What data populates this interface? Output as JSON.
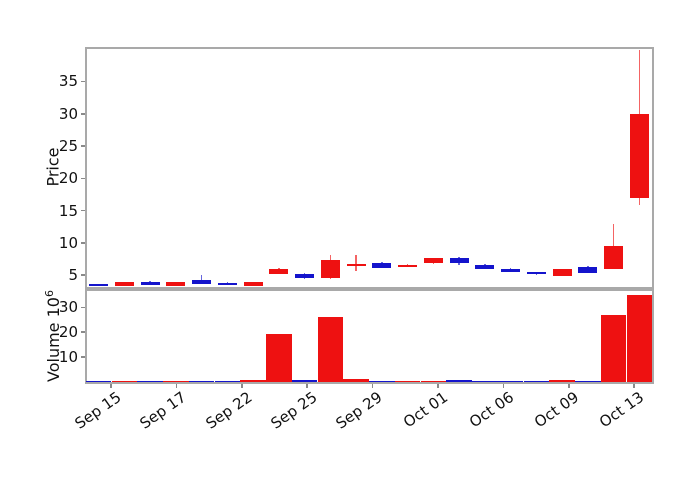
{
  "figure": {
    "background": "#ffffff",
    "title": ""
  },
  "colors": {
    "red": "#ee1111",
    "blue": "#1414cc",
    "spine": "#a9a9a9",
    "tick": "#8a8a8a",
    "text": "#111111"
  },
  "chart_data": {
    "type": "candlestick_with_volume",
    "title": "",
    "price": {
      "ylabel": "Price",
      "yticks": [
        5,
        10,
        15,
        20,
        25,
        30,
        35
      ],
      "ylim": [
        3.0,
        40.3
      ],
      "grid": false
    },
    "volume": {
      "ylabel": "Volume 10⁶",
      "ylabel_base": "Volume  10",
      "ylabel_exp": "6",
      "yticks": [
        10,
        20,
        30
      ],
      "ylim": [
        0,
        37.5
      ],
      "unit": "millions",
      "grid": false
    },
    "x_tick_labels": [
      "Sep 15",
      "Sep 17",
      "Sep 22",
      "Sep 25",
      "Sep 29",
      "Oct 01",
      "Oct 06",
      "Oct 09",
      "Oct 13"
    ],
    "legend": null,
    "candles": [
      {
        "open": 3.65,
        "high": 3.7,
        "low": 3.45,
        "close": 3.5,
        "volume_m": 0.15,
        "color": "blue"
      },
      {
        "open": 3.35,
        "high": 4.0,
        "low": 3.3,
        "close": 3.95,
        "volume_m": 0.2,
        "color": "red"
      },
      {
        "open": 4.0,
        "high": 4.05,
        "low": 3.45,
        "close": 3.5,
        "volume_m": 0.15,
        "color": "blue"
      },
      {
        "open": 3.35,
        "high": 3.95,
        "low": 3.3,
        "close": 3.9,
        "volume_m": 0.15,
        "color": "red"
      },
      {
        "open": 4.2,
        "high": 5.0,
        "low": 3.65,
        "close": 3.7,
        "volume_m": 0.25,
        "color": "blue"
      },
      {
        "open": 3.85,
        "high": 3.9,
        "low": 3.5,
        "close": 3.55,
        "volume_m": 0.15,
        "color": "blue"
      },
      {
        "open": 3.4,
        "high": 4.0,
        "low": 3.35,
        "close": 3.95,
        "volume_m": 0.7,
        "color": "red"
      },
      {
        "open": 5.25,
        "high": 6.1,
        "low": 5.2,
        "close": 6.0,
        "volume_m": 19.3,
        "color": "red"
      },
      {
        "open": 5.25,
        "high": 5.3,
        "low": 4.45,
        "close": 4.5,
        "volume_m": 0.6,
        "color": "blue"
      },
      {
        "open": 4.5,
        "high": 8.2,
        "low": 4.4,
        "close": 7.3,
        "volume_m": 26.3,
        "color": "red"
      },
      {
        "open": 6.65,
        "high": 8.1,
        "low": 5.6,
        "close": 6.75,
        "volume_m": 1.0,
        "color": "red"
      },
      {
        "open": 6.95,
        "high": 7.1,
        "low": 6.05,
        "close": 6.15,
        "volume_m": 0.3,
        "color": "blue"
      },
      {
        "open": 6.45,
        "high": 6.8,
        "low": 6.3,
        "close": 6.6,
        "volume_m": 0.25,
        "color": "red"
      },
      {
        "open": 6.85,
        "high": 7.65,
        "low": 6.8,
        "close": 7.6,
        "volume_m": 0.35,
        "color": "red"
      },
      {
        "open": 7.6,
        "high": 7.85,
        "low": 6.6,
        "close": 6.85,
        "volume_m": 0.5,
        "color": "blue"
      },
      {
        "open": 6.65,
        "high": 6.7,
        "low": 5.9,
        "close": 5.95,
        "volume_m": 0.35,
        "color": "blue"
      },
      {
        "open": 6.0,
        "high": 6.05,
        "low": 5.45,
        "close": 5.5,
        "volume_m": 0.3,
        "color": "blue"
      },
      {
        "open": 5.5,
        "high": 5.55,
        "low": 5.0,
        "close": 5.15,
        "volume_m": 0.25,
        "color": "blue"
      },
      {
        "open": 4.9,
        "high": 5.95,
        "low": 4.85,
        "close": 5.9,
        "volume_m": 0.8,
        "color": "red"
      },
      {
        "open": 6.35,
        "high": 6.4,
        "low": 5.35,
        "close": 5.4,
        "volume_m": 0.4,
        "color": "blue"
      },
      {
        "open": 6.0,
        "high": 13.0,
        "low": 5.9,
        "close": 9.6,
        "volume_m": 27.0,
        "color": "red"
      },
      {
        "open": 16.9,
        "high": 39.8,
        "low": 15.8,
        "close": 30.0,
        "volume_m": 35.0,
        "color": "red"
      }
    ]
  }
}
